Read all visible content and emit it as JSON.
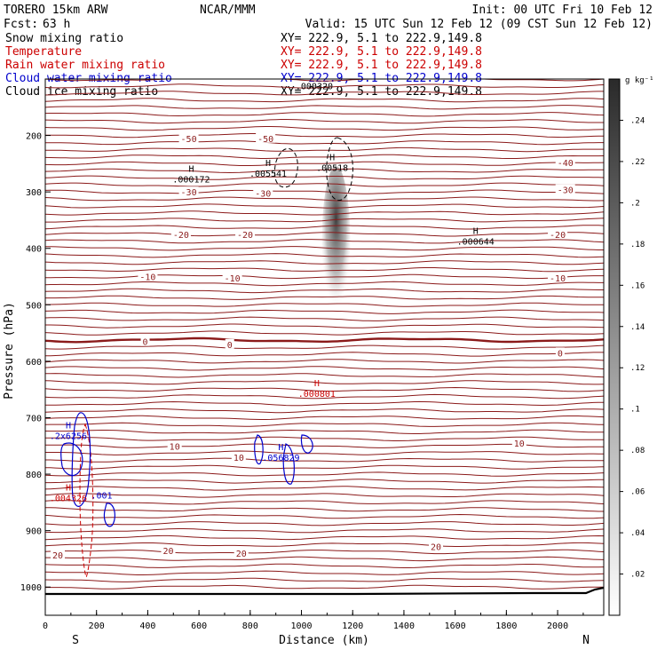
{
  "header": {
    "model": "TORERO  15km ARW",
    "org": "NCAR/MMM",
    "init": "Init: 00 UTC Fri 10 Feb 12",
    "fcst_label": "Fcst:",
    "fcst_value": "63 h",
    "valid": "Valid: 15 UTC Sun 12 Feb 12 (09 CST Sun 12 Feb 12)"
  },
  "legend": [
    {
      "label": "Snow mixing ratio",
      "xy": "XY= 222.9,  5.1 to 222.9,149.8",
      "color": "#000000"
    },
    {
      "label": "Temperature",
      "xy": "XY= 222.9,  5.1 to 222.9,149.8",
      "color": "#cc0000"
    },
    {
      "label": "Rain water mixing ratio",
      "xy": "XY= 222.9,  5.1 to 222.9,149.8",
      "color": "#cc0000"
    },
    {
      "label": "Cloud water mixing ratio",
      "xy": "XY= 222.9,  5.1 to 222.9,149.8",
      "color": "#0000cc"
    },
    {
      "label": "Cloud ice mixing ratio",
      "xy": "XY= 222.9,  5.1 to 222.9,149.8",
      "color": "#000000"
    }
  ],
  "colorbar": {
    "unit": "g kg⁻¹",
    "ticks": [
      ".24",
      ".22",
      ".2",
      ".18",
      ".16",
      ".14",
      ".12",
      ".1",
      ".08",
      ".06",
      ".04",
      ".02"
    ],
    "tick_values": [
      0.24,
      0.22,
      0.2,
      0.18,
      0.16,
      0.14,
      0.12,
      0.1,
      0.08,
      0.06,
      0.04,
      0.02
    ],
    "range": [
      0,
      0.26
    ]
  },
  "chart_data": {
    "type": "cross-section contour",
    "xlabel": "Distance (km)",
    "ylabel": "Pressure (hPa)",
    "xlim": [
      0,
      2180
    ],
    "ylim": [
      1050,
      100
    ],
    "x_ticks": [
      0,
      200,
      400,
      600,
      800,
      1000,
      1200,
      1400,
      1600,
      1800,
      2000
    ],
    "y_ticks": [
      200,
      300,
      400,
      500,
      600,
      700,
      800,
      900,
      1000
    ],
    "end_left": "S",
    "end_right": "N",
    "temperature_isotherms": [
      {
        "value": -50,
        "pressure": 205,
        "label": "-50"
      },
      {
        "value": -40,
        "pressure": 248,
        "label": "-40"
      },
      {
        "value": -30,
        "pressure": 300,
        "label": "-30"
      },
      {
        "value": -20,
        "pressure": 375,
        "label": "-20"
      },
      {
        "value": -10,
        "pressure": 450,
        "label": "-10"
      },
      {
        "value": 0,
        "pressure": 565,
        "label": "0"
      },
      {
        "value": 10,
        "pressure": 750,
        "label": "10"
      },
      {
        "value": 20,
        "pressure": 935,
        "label": "20"
      }
    ],
    "temperature_labels": [
      {
        "x_km": 560,
        "p": 205,
        "text": "-50"
      },
      {
        "x_km": 860,
        "p": 205,
        "text": "-50"
      },
      {
        "x_km": 2030,
        "p": 248,
        "text": "-40"
      },
      {
        "x_km": 560,
        "p": 300,
        "text": "-30"
      },
      {
        "x_km": 850,
        "p": 302,
        "text": "-30"
      },
      {
        "x_km": 2030,
        "p": 296,
        "text": "-30"
      },
      {
        "x_km": 530,
        "p": 375,
        "text": "-20"
      },
      {
        "x_km": 780,
        "p": 375,
        "text": "-20"
      },
      {
        "x_km": 2000,
        "p": 375,
        "text": "-20"
      },
      {
        "x_km": 400,
        "p": 450,
        "text": "-10"
      },
      {
        "x_km": 730,
        "p": 452,
        "text": "-10"
      },
      {
        "x_km": 2000,
        "p": 452,
        "text": "-10"
      },
      {
        "x_km": 390,
        "p": 565,
        "text": "0"
      },
      {
        "x_km": 720,
        "p": 570,
        "text": "0"
      },
      {
        "x_km": 2010,
        "p": 585,
        "text": "0"
      },
      {
        "x_km": 505,
        "p": 750,
        "text": "10"
      },
      {
        "x_km": 755,
        "p": 770,
        "text": "10"
      },
      {
        "x_km": 1850,
        "p": 745,
        "text": "10"
      },
      {
        "x_km": 0,
        "p": 943,
        "text": "20"
      },
      {
        "x_km": 480,
        "p": 935,
        "text": "20"
      },
      {
        "x_km": 765,
        "p": 940,
        "text": "20"
      },
      {
        "x_km": 1525,
        "p": 928,
        "text": "20"
      }
    ],
    "extrema": [
      {
        "x_km": 1050,
        "p": 115,
        "h": "",
        "value": ".000320",
        "color": "#000000"
      },
      {
        "x_km": 570,
        "p": 280,
        "h": "H",
        "value": ".000172",
        "color": "#000000"
      },
      {
        "x_km": 870,
        "p": 270,
        "h": "H",
        "value": ".005541",
        "color": "#000000"
      },
      {
        "x_km": 1120,
        "p": 260,
        "h": "H",
        "value": ".00518",
        "color": "#000000"
      },
      {
        "x_km": 1680,
        "p": 390,
        "h": "H",
        "value": ".000644",
        "color": "#000000"
      },
      {
        "x_km": 1060,
        "p": 660,
        "h": "H",
        "value": ".000801",
        "color": "#cc0000"
      },
      {
        "x_km": 90,
        "p": 735,
        "h": "H",
        "value": ".2x6256",
        "color": "#0000cc"
      },
      {
        "x_km": 920,
        "p": 773,
        "h": "H",
        "value": ".056829",
        "color": "#0000cc"
      },
      {
        "x_km": 90,
        "p": 845,
        "h": "H",
        "value": ".004326",
        "color": "#cc0000"
      },
      {
        "x_km": 220,
        "p": 840,
        "h": "",
        "value": ".001",
        "color": "#0000cc"
      }
    ],
    "snow_shading": {
      "center_km": 1135,
      "top_p": 270,
      "bottom_p": 505,
      "max": 0.24
    }
  }
}
